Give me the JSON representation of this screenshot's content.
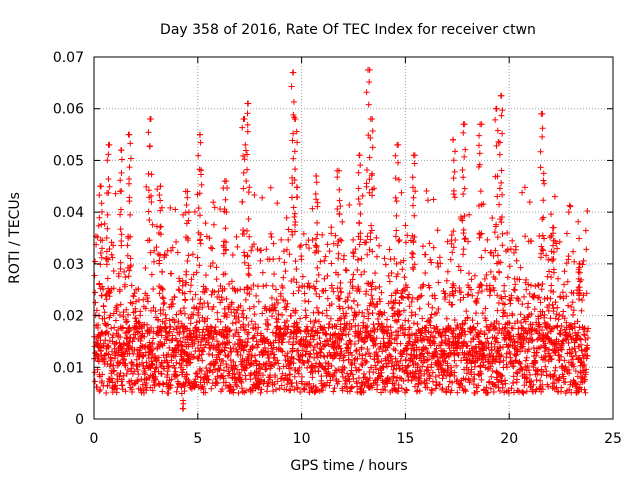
{
  "chart_data": {
    "type": "scatter",
    "title": "Day 358 of 2016, Rate Of TEC Index for receiver ctwn",
    "xlabel": "GPS time / hours",
    "ylabel": "ROTI / TECUs",
    "xlim": [
      0,
      25
    ],
    "ylim": [
      0,
      0.07
    ],
    "xticks": [
      0,
      5,
      10,
      15,
      20,
      25
    ],
    "yticks": [
      0,
      0.01,
      0.02,
      0.03,
      0.04,
      0.05,
      0.06,
      0.07
    ],
    "xtick_labels": [
      "0",
      "5",
      "10",
      "15",
      "20",
      "25"
    ],
    "ytick_labels": [
      "0",
      "0.01",
      "0.02",
      "0.03",
      "0.04",
      "0.05",
      "0.06",
      "0.07"
    ],
    "grid": true,
    "marker": "+",
    "marker_color": "#ff0000",
    "data_extent": {
      "x_min": 0.0,
      "x_max": 23.8,
      "y_min": 0.002,
      "y_max": 0.0675
    },
    "density_profile": {
      "description": "dense band ~0.005-0.02 across full day; frequent spikes to 0.03-0.06",
      "peaks": [
        {
          "x": 0.3,
          "y": 0.045
        },
        {
          "x": 0.7,
          "y": 0.053
        },
        {
          "x": 1.3,
          "y": 0.052
        },
        {
          "x": 1.7,
          "y": 0.055
        },
        {
          "x": 2.7,
          "y": 0.058
        },
        {
          "x": 3.2,
          "y": 0.045
        },
        {
          "x": 4.5,
          "y": 0.044
        },
        {
          "x": 5.1,
          "y": 0.055
        },
        {
          "x": 6.3,
          "y": 0.046
        },
        {
          "x": 7.2,
          "y": 0.058
        },
        {
          "x": 7.4,
          "y": 0.061
        },
        {
          "x": 9.6,
          "y": 0.067
        },
        {
          "x": 9.7,
          "y": 0.058
        },
        {
          "x": 10.7,
          "y": 0.047
        },
        {
          "x": 11.8,
          "y": 0.048
        },
        {
          "x": 12.8,
          "y": 0.051
        },
        {
          "x": 13.2,
          "y": 0.0675
        },
        {
          "x": 13.4,
          "y": 0.058
        },
        {
          "x": 14.6,
          "y": 0.053
        },
        {
          "x": 15.4,
          "y": 0.051
        },
        {
          "x": 17.3,
          "y": 0.054
        },
        {
          "x": 17.8,
          "y": 0.057
        },
        {
          "x": 18.6,
          "y": 0.057
        },
        {
          "x": 19.4,
          "y": 0.06
        },
        {
          "x": 19.6,
          "y": 0.0625
        },
        {
          "x": 21.6,
          "y": 0.059
        },
        {
          "x": 22.1,
          "y": 0.037
        },
        {
          "x": 23.4,
          "y": 0.03
        },
        {
          "x": 4.3,
          "y": 0.002
        }
      ]
    }
  }
}
